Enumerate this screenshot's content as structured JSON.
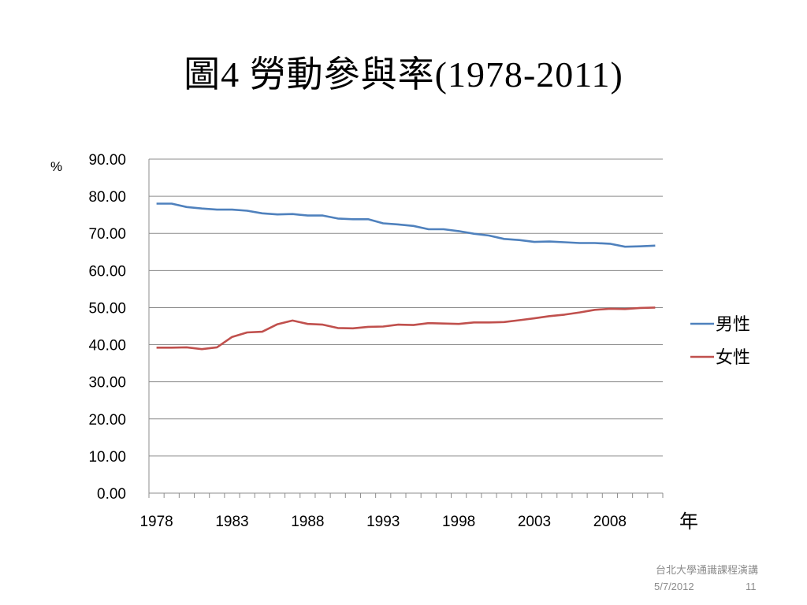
{
  "slide": {
    "title": "圖4  勞動參與率(1978-2011)",
    "footer_org": "台北大學通識課程演講",
    "footer_date": "5/7/2012",
    "page_number": "11"
  },
  "chart_data": {
    "type": "line",
    "ylabel": "%",
    "xlabel": "年",
    "ylim": [
      0,
      90
    ],
    "yticks": [
      "0.00",
      "10.00",
      "20.00",
      "30.00",
      "40.00",
      "50.00",
      "60.00",
      "70.00",
      "80.00",
      "90.00"
    ],
    "xticks": [
      "1978",
      "1983",
      "1988",
      "1993",
      "1998",
      "2003",
      "2008"
    ],
    "grid": true,
    "legend_position": "right",
    "x": [
      1978,
      1979,
      1980,
      1981,
      1982,
      1983,
      1984,
      1985,
      1986,
      1987,
      1988,
      1989,
      1990,
      1991,
      1992,
      1993,
      1994,
      1995,
      1996,
      1997,
      1998,
      1999,
      2000,
      2001,
      2002,
      2003,
      2004,
      2005,
      2006,
      2007,
      2008,
      2009,
      2010,
      2011
    ],
    "series": [
      {
        "name": "男性",
        "color": "#4f81bd",
        "values": [
          78.0,
          78.0,
          77.1,
          76.7,
          76.4,
          76.4,
          76.1,
          75.4,
          75.1,
          75.2,
          74.8,
          74.8,
          74.0,
          73.8,
          73.8,
          72.7,
          72.4,
          72.0,
          71.1,
          71.1,
          70.6,
          69.9,
          69.4,
          68.5,
          68.2,
          67.7,
          67.8,
          67.6,
          67.4,
          67.4,
          67.2,
          66.4,
          66.5,
          66.7
        ]
      },
      {
        "name": "女性",
        "color": "#c0504d",
        "values": [
          39.2,
          39.2,
          39.3,
          38.8,
          39.3,
          42.1,
          43.3,
          43.5,
          45.5,
          46.5,
          45.6,
          45.4,
          44.5,
          44.4,
          44.8,
          44.9,
          45.4,
          45.3,
          45.8,
          45.7,
          45.6,
          46.0,
          46.0,
          46.1,
          46.6,
          47.1,
          47.7,
          48.1,
          48.7,
          49.4,
          49.7,
          49.6,
          49.9,
          50.0
        ]
      }
    ]
  }
}
